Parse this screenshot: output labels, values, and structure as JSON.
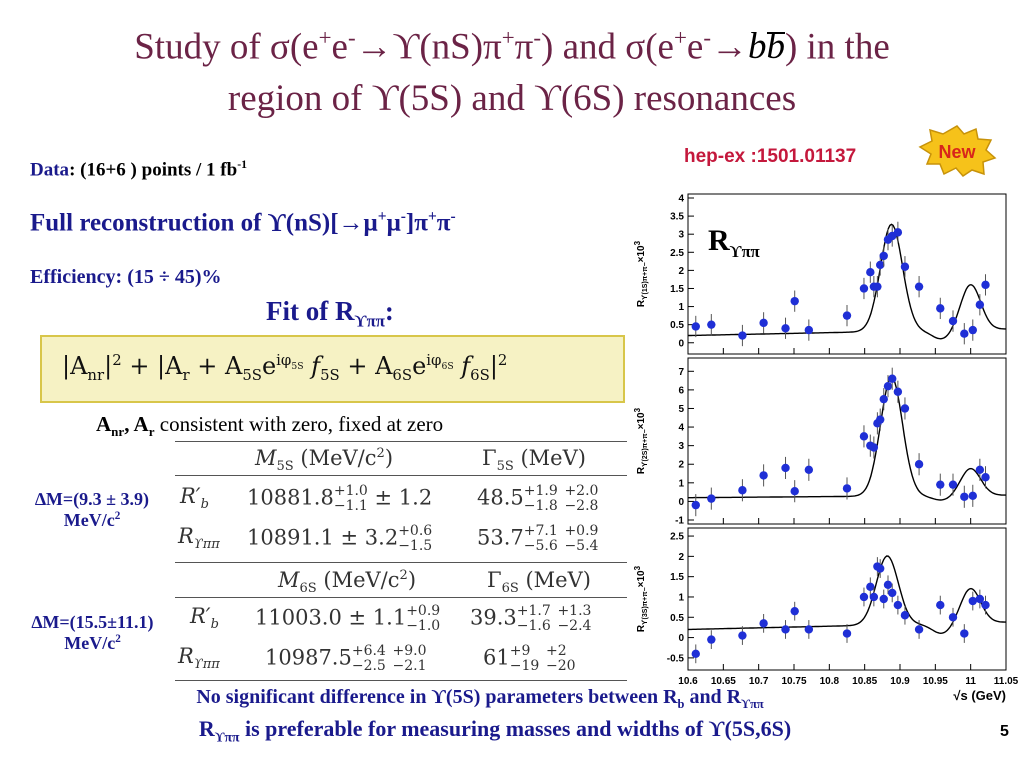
{
  "title": {
    "line1_a": "Study of σ(e",
    "line1_b": "+",
    "line1_c": "e",
    "line1_d": "-",
    "line1_e": "→ϒ(nS)π",
    "line1_f": "+",
    "line1_g": "π",
    "line1_h": "-",
    "line1_i": ") and σ(e",
    "line1_j": "+",
    "line1_k": "e",
    "line1_l": "-",
    "line1_m": "→",
    "line1_n": "bb",
    "line1_o": ") in the",
    "line2": "region of ϒ(5S) and ϒ(6S) resonances"
  },
  "reference": "hep-ex :1501.01137",
  "badge": "New",
  "data_line": {
    "label": "Data",
    "text": ": (16+6 ) points / 1 fb",
    "sup": "-1"
  },
  "full_reco": {
    "a": "Full reconstruction of ϒ(nS)[→μ",
    "b": "+",
    "c": "μ",
    "d": "-",
    "e": "]π",
    "f": "+",
    "g": "π",
    "h": "-"
  },
  "efficiency": "Efficiency:  (15 ÷ 45)%",
  "fit_of": {
    "a": "Fit of  R",
    "sub": "ϒππ",
    "b": ":"
  },
  "formula": {
    "a": "|A",
    "nr": "nr",
    "b": "|",
    "sq": "2",
    "c": " + |A",
    "r": "r",
    "d": " + A",
    "s5": "5S",
    "e": "e",
    "phi5": "iφ",
    "phi5s": "5S",
    "f": " f",
    "f5": "5S",
    "g": " + A",
    "s6": "6S",
    "h": "e",
    "phi6": "iφ",
    "phi6s": "6S",
    "i": " f",
    "f6": "6S",
    "j": "|",
    "sq2": "2"
  },
  "consistency": {
    "a": "A",
    "nr": "nr",
    "b": ", A",
    "r": "r",
    "c": " consistent with zero, fixed at zero"
  },
  "dm5": {
    "line1": "∆M=(9.3 ± 3.9)",
    "line2a": "MeV/c",
    "line2b": "2"
  },
  "dm6": {
    "line1": "∆M=(15.5±11.1)",
    "line2a": "MeV/c",
    "line2b": "2"
  },
  "table5": {
    "header_mass": "M",
    "header_mass_sub": "5S",
    "header_mass_unit": " (MeV/c",
    "header_mass_sup": "2",
    "header_mass_end": ")",
    "header_width": "Γ",
    "header_width_sub": "5S",
    "header_width_unit": " (MeV)",
    "rows": [
      {
        "label": "R′",
        "label_sub": "b",
        "mass": "10881.8",
        "mass_up": "+1.0",
        "mass_dn": "−1.1",
        "mass_sys": " ± 1.2",
        "width": "48.5",
        "w_up1": "+1.9",
        "w_dn1": "−1.8",
        "w_up2": "+2.0",
        "w_dn2": "−2.8"
      },
      {
        "label": "R",
        "label_sub": "ϒππ",
        "mass": "10891.1 ± 3.2",
        "mass_up": "+0.6",
        "mass_dn": "−1.5",
        "mass_sys": "",
        "width": "53.7",
        "w_up1": "+7.1",
        "w_dn1": "−5.6",
        "w_up2": "+0.9",
        "w_dn2": "−5.4"
      }
    ]
  },
  "table6": {
    "header_mass": "M",
    "header_mass_sub": "6S",
    "header_mass_unit": " (MeV/c",
    "header_mass_sup": "2",
    "header_mass_end": ")",
    "header_width": "Γ",
    "header_width_sub": "6S",
    "header_width_unit": " (MeV)",
    "rows": [
      {
        "label": "R′",
        "label_sub": "b",
        "mass": "11003.0 ± 1.1",
        "mass_up": "+0.9",
        "mass_dn": "−1.0",
        "mass_sys": "",
        "width": "39.3",
        "w_up1": "+1.7",
        "w_dn1": "−1.6",
        "w_up2": "+1.3",
        "w_dn2": "−2.4"
      },
      {
        "label": "R",
        "label_sub": "ϒππ",
        "mass": "10987.5",
        "mass_up": "+6.4",
        "mass_dn": "−2.5",
        "mass_sys": "",
        "mass_up2": "+9.0",
        "mass_dn2": "−2.1",
        "width": "61",
        "w_up1": "+9",
        "w_dn1": "−19",
        "w_up2": "+2",
        "w_dn2": "−20"
      }
    ]
  },
  "plot_label": {
    "a": "R",
    "sub": "ϒππ"
  },
  "conclusion": {
    "line1_a": "No significant difference in ϒ(5S) parameters between R",
    "line1_b": "b",
    "line1_c": " and R",
    "line1_d": "ϒππ",
    "line2_a": "R",
    "line2_b": "ϒππ",
    "line2_c": " is preferable for measuring masses and widths of ϒ(5S,6S)"
  },
  "page_number": "5",
  "colors": {
    "title": "#6b2346",
    "navy": "#1a1a8c",
    "reference": "#c4183c",
    "points": "#1f2fd6"
  },
  "chart_data": [
    {
      "type": "scatter",
      "ylabel": "R",
      "ylabel_sub": "ϒ(1S)π+π−",
      "ylabel_unit": "×10",
      "ylabel_exp": "3",
      "xlim": [
        10.6,
        11.05
      ],
      "ylim": [
        -0.2,
        4
      ],
      "yticks": [
        "0",
        "0.5",
        "1",
        "1.5",
        "2",
        "2.5",
        "3",
        "3.5",
        "4"
      ],
      "x": [
        10.611,
        10.633,
        10.677,
        10.707,
        10.738,
        10.751,
        10.771,
        10.825,
        10.849,
        10.858,
        10.863,
        10.868,
        10.872,
        10.877,
        10.883,
        10.889,
        10.897,
        10.907,
        10.927,
        10.957,
        10.975,
        10.991,
        11.003,
        11.013,
        11.021
      ],
      "y": [
        0.45,
        0.5,
        0.2,
        0.55,
        0.4,
        1.15,
        0.35,
        0.75,
        1.5,
        1.95,
        1.55,
        1.55,
        2.15,
        2.4,
        2.85,
        2.95,
        3.05,
        2.1,
        1.55,
        0.95,
        0.6,
        0.25,
        0.35,
        1.05,
        1.6
      ],
      "fit": "Breit-Wigner with peaks near 10.89 and 11.00"
    },
    {
      "type": "scatter",
      "ylabel": "R",
      "ylabel_sub": "ϒ(2S)π+π−",
      "ylabel_unit": "×10",
      "ylabel_exp": "3",
      "xlim": [
        10.6,
        11.05
      ],
      "ylim": [
        -1,
        7.5
      ],
      "yticks": [
        "-1",
        "0",
        "1",
        "2",
        "3",
        "4",
        "5",
        "6",
        "7"
      ],
      "x": [
        10.611,
        10.633,
        10.677,
        10.707,
        10.738,
        10.751,
        10.771,
        10.825,
        10.849,
        10.858,
        10.863,
        10.868,
        10.872,
        10.877,
        10.883,
        10.889,
        10.897,
        10.907,
        10.927,
        10.957,
        10.975,
        10.991,
        11.003,
        11.013,
        11.021
      ],
      "y": [
        -0.2,
        0.15,
        0.6,
        1.4,
        1.8,
        0.55,
        1.7,
        0.7,
        3.5,
        3.0,
        2.9,
        4.2,
        4.4,
        5.5,
        6.2,
        6.6,
        5.9,
        5.0,
        2.0,
        0.9,
        0.9,
        0.25,
        0.3,
        1.7,
        1.3
      ],
      "fit": "Breit-Wigner with peaks near 10.89 and 11.00"
    },
    {
      "type": "scatter",
      "ylabel": "R",
      "ylabel_sub": "ϒ(3S)π+π−",
      "ylabel_unit": "×10",
      "ylabel_exp": "3",
      "xlim": [
        10.6,
        11.05
      ],
      "ylim": [
        -0.7,
        2.6
      ],
      "yticks": [
        "-0.5",
        "0",
        "0.5",
        "1",
        "1.5",
        "2",
        "2.5"
      ],
      "x": [
        10.611,
        10.633,
        10.677,
        10.707,
        10.738,
        10.751,
        10.771,
        10.825,
        10.849,
        10.858,
        10.863,
        10.868,
        10.872,
        10.877,
        10.883,
        10.889,
        10.897,
        10.907,
        10.927,
        10.957,
        10.975,
        10.991,
        11.003,
        11.013,
        11.021
      ],
      "y": [
        -0.4,
        -0.05,
        0.05,
        0.35,
        0.2,
        0.65,
        0.2,
        0.1,
        1.0,
        1.25,
        1.0,
        1.75,
        1.7,
        0.95,
        1.3,
        1.1,
        0.8,
        0.55,
        0.2,
        0.8,
        0.5,
        0.1,
        0.9,
        0.95,
        0.8
      ],
      "fit": "Breit-Wigner with peaks near 10.88 and 11.00"
    }
  ],
  "x_axis": {
    "ticks": [
      "10.6",
      "10.65",
      "10.7",
      "10.75",
      "10.8",
      "10.85",
      "10.9",
      "10.95",
      "11",
      "11.05"
    ],
    "label": "√s (GeV)"
  }
}
